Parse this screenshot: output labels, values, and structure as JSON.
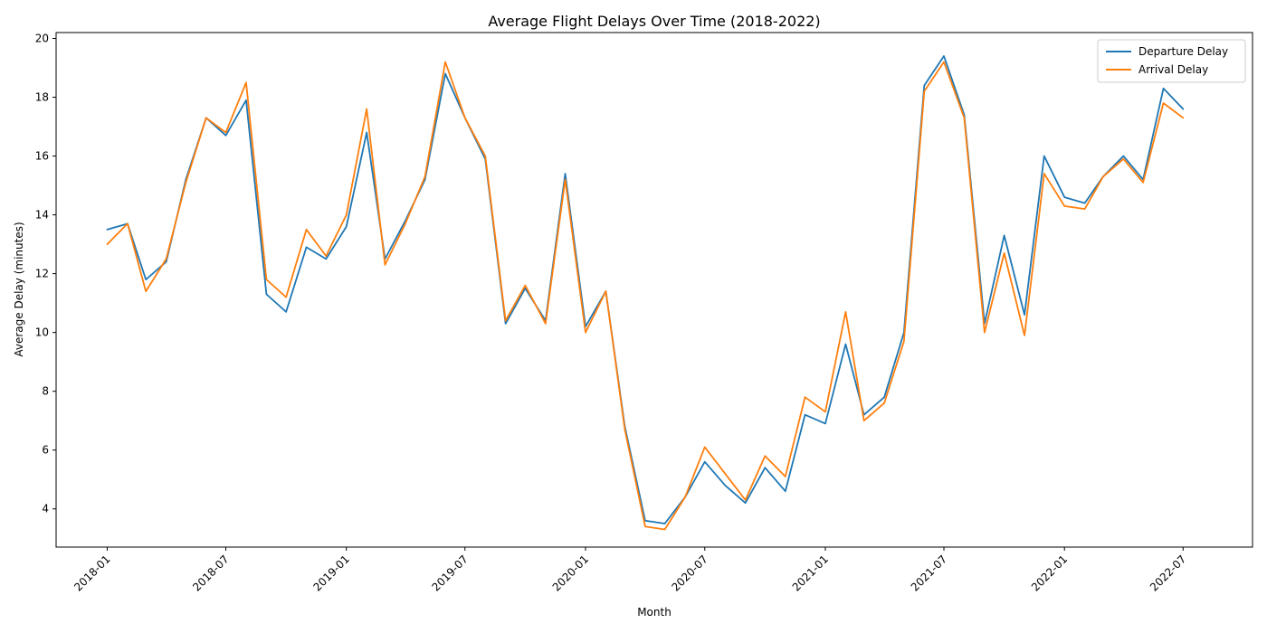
{
  "chart_data": {
    "type": "line",
    "title": "Average Flight Delays Over Time (2018-2022)",
    "xlabel": "Month",
    "ylabel": "Average Delay (minutes)",
    "ylim": [
      2.7,
      20.2
    ],
    "xlim": [
      "2017-10-15",
      "2022-10-15"
    ],
    "grid": false,
    "legend_position": "top-right",
    "y_ticks": [
      4,
      6,
      8,
      10,
      12,
      14,
      16,
      18,
      20
    ],
    "x_ticks": [
      "2018-01",
      "2018-07",
      "2019-01",
      "2019-07",
      "2020-01",
      "2020-07",
      "2021-01",
      "2021-07",
      "2022-01",
      "2022-07"
    ],
    "x": [
      "2018-01",
      "2018-02",
      "2018-03",
      "2018-04",
      "2018-05",
      "2018-06",
      "2018-07",
      "2018-08",
      "2018-09",
      "2018-10",
      "2018-11",
      "2018-12",
      "2019-01",
      "2019-02",
      "2019-03",
      "2019-04",
      "2019-05",
      "2019-06",
      "2019-07",
      "2019-08",
      "2019-09",
      "2019-10",
      "2019-11",
      "2019-12",
      "2020-01",
      "2020-02",
      "2020-03",
      "2020-04",
      "2020-05",
      "2020-06",
      "2020-07",
      "2020-08",
      "2020-09",
      "2020-10",
      "2020-11",
      "2020-12",
      "2021-01",
      "2021-02",
      "2021-03",
      "2021-04",
      "2021-05",
      "2021-06",
      "2021-07",
      "2021-08",
      "2021-09",
      "2021-10",
      "2021-11",
      "2021-12",
      "2022-01",
      "2022-02",
      "2022-03",
      "2022-04",
      "2022-05",
      "2022-06",
      "2022-07"
    ],
    "series": [
      {
        "name": "Departure Delay",
        "color": "#1f77b4",
        "values": [
          13.5,
          13.7,
          11.8,
          12.4,
          15.2,
          17.3,
          16.7,
          17.9,
          11.3,
          10.7,
          12.9,
          12.5,
          13.6,
          16.8,
          12.5,
          13.8,
          15.2,
          18.8,
          17.3,
          15.9,
          10.3,
          11.5,
          10.4,
          15.4,
          10.2,
          11.4,
          6.8,
          3.6,
          3.5,
          4.4,
          5.6,
          4.8,
          4.2,
          5.4,
          4.6,
          7.2,
          6.9,
          9.6,
          7.2,
          7.8,
          10.0,
          18.4,
          19.4,
          17.4,
          10.3,
          13.3,
          10.6,
          16.0,
          14.6,
          14.4,
          15.3,
          16.0,
          15.2,
          18.3,
          17.6
        ]
      },
      {
        "name": "Arrival Delay",
        "color": "#ff7f0e",
        "values": [
          13.0,
          13.7,
          11.4,
          12.5,
          15.1,
          17.3,
          16.8,
          18.5,
          11.8,
          11.2,
          13.5,
          12.6,
          14.0,
          17.6,
          12.3,
          13.7,
          15.3,
          19.2,
          17.3,
          16.0,
          10.4,
          11.6,
          10.3,
          15.2,
          10.0,
          11.4,
          6.7,
          3.4,
          3.3,
          4.4,
          6.1,
          5.2,
          4.3,
          5.8,
          5.1,
          7.8,
          7.3,
          10.7,
          7.0,
          7.6,
          9.7,
          18.2,
          19.2,
          17.3,
          10.0,
          12.7,
          9.9,
          15.4,
          14.3,
          14.2,
          15.3,
          15.9,
          15.1,
          17.8,
          17.3
        ]
      }
    ]
  }
}
